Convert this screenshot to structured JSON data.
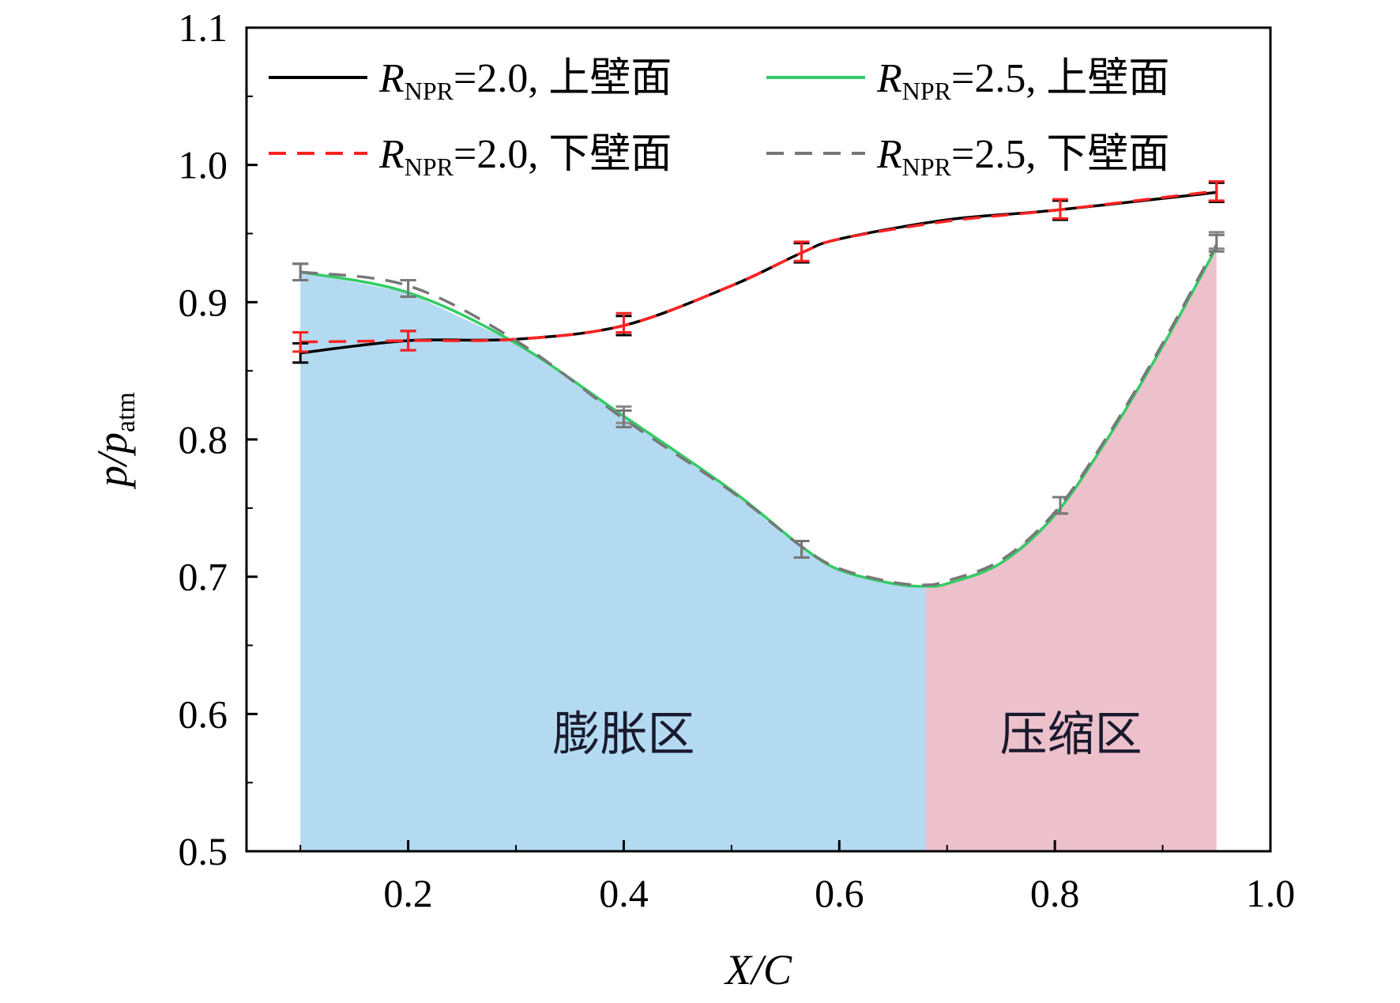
{
  "chart_data": {
    "type": "line",
    "xlabel": "X/C",
    "ylabel": {
      "main": "p/p",
      "sub": "atm"
    },
    "xlim": [
      0.05,
      1.0
    ],
    "ylim": [
      0.5,
      1.1
    ],
    "xticks": [
      "0.2",
      "0.4",
      "0.6",
      "0.8",
      "1.0"
    ],
    "xtick_values": [
      0.2,
      0.4,
      0.6,
      0.8,
      1.0
    ],
    "yticks": [
      "0.5",
      "0.6",
      "0.7",
      "0.8",
      "0.9",
      "1.0",
      "1.1"
    ],
    "ytick_values": [
      0.5,
      0.6,
      0.7,
      0.8,
      0.9,
      1.0,
      1.1
    ],
    "legend_position": "top",
    "series": [
      {
        "key": "npr20_upper",
        "legend": {
          "sym": "R",
          "sub": "NPR",
          "rest": "=2.0, 上壁面"
        },
        "color": "#000000",
        "dash": "none",
        "x": [
          0.1,
          0.2,
          0.3,
          0.4,
          0.5,
          0.565,
          0.6,
          0.7,
          0.8,
          0.95
        ],
        "y": [
          0.863,
          0.872,
          0.873,
          0.883,
          0.912,
          0.936,
          0.946,
          0.96,
          0.967,
          0.98
        ],
        "markers_x": [
          0.1,
          0.2,
          0.4,
          0.565,
          0.805,
          0.95
        ],
        "markers_y": [
          0.863,
          0.872,
          0.883,
          0.936,
          0.967,
          0.98
        ],
        "error": 0.007,
        "err_color": "#000000"
      },
      {
        "key": "npr25_upper",
        "legend": {
          "sym": "R",
          "sub": "NPR",
          "rest": "=2.5, 上壁面"
        },
        "color": "#33cc66",
        "dash": "none",
        "x": [
          0.1,
          0.2,
          0.3,
          0.4,
          0.5,
          0.565,
          0.6,
          0.65,
          0.68,
          0.7,
          0.75,
          0.8,
          0.85,
          0.9,
          0.95
        ],
        "y": [
          0.922,
          0.907,
          0.87,
          0.817,
          0.763,
          0.722,
          0.705,
          0.695,
          0.693,
          0.695,
          0.71,
          0.745,
          0.802,
          0.868,
          0.94
        ],
        "markers_x": [
          0.1,
          0.2,
          0.4,
          0.565,
          0.805,
          0.95
        ],
        "markers_y": [
          0.922,
          0.91,
          0.818,
          0.72,
          0.752,
          0.945
        ],
        "error": 0.006,
        "err_color": "#888888"
      },
      {
        "key": "npr20_lower",
        "legend": {
          "sym": "R",
          "sub": "NPR",
          "rest": "=2.0, 下壁面"
        },
        "color": "#ff2222",
        "dash": "22,14",
        "x": [
          0.1,
          0.2,
          0.3,
          0.4,
          0.5,
          0.565,
          0.6,
          0.7,
          0.8,
          0.95
        ],
        "y": [
          0.871,
          0.872,
          0.873,
          0.883,
          0.912,
          0.936,
          0.946,
          0.959,
          0.967,
          0.981
        ],
        "markers_x": [
          0.1,
          0.2,
          0.4,
          0.565,
          0.805,
          0.95
        ],
        "markers_y": [
          0.871,
          0.872,
          0.885,
          0.937,
          0.968,
          0.981
        ],
        "error": 0.007,
        "err_color": "#ff2222"
      },
      {
        "key": "npr25_lower",
        "legend": {
          "sym": "R",
          "sub": "NPR",
          "rest": "=2.5, 下壁面"
        },
        "color": "#777777",
        "dash": "22,14",
        "x": [
          0.1,
          0.2,
          0.3,
          0.4,
          0.5,
          0.565,
          0.6,
          0.65,
          0.68,
          0.7,
          0.75,
          0.8,
          0.85,
          0.9,
          0.95
        ],
        "y": [
          0.922,
          0.912,
          0.872,
          0.815,
          0.762,
          0.722,
          0.706,
          0.696,
          0.694,
          0.697,
          0.712,
          0.747,
          0.804,
          0.87,
          0.942
        ],
        "markers_x": [
          0.1,
          0.2,
          0.4,
          0.565,
          0.805,
          0.95
        ],
        "markers_y": [
          0.922,
          0.91,
          0.815,
          0.72,
          0.752,
          0.943
        ],
        "error": 0.006,
        "err_color": "#777777"
      }
    ],
    "regions": [
      {
        "label": "膨胀区",
        "x_start": 0.1,
        "x_end": 0.68,
        "color": "#b4daf2",
        "label_x": 0.4,
        "label_y": 0.585
      },
      {
        "label": "压缩区",
        "x_start": 0.68,
        "x_end": 0.95,
        "color": "#ecc1cc",
        "label_x": 0.815,
        "label_y": 0.585
      }
    ]
  }
}
